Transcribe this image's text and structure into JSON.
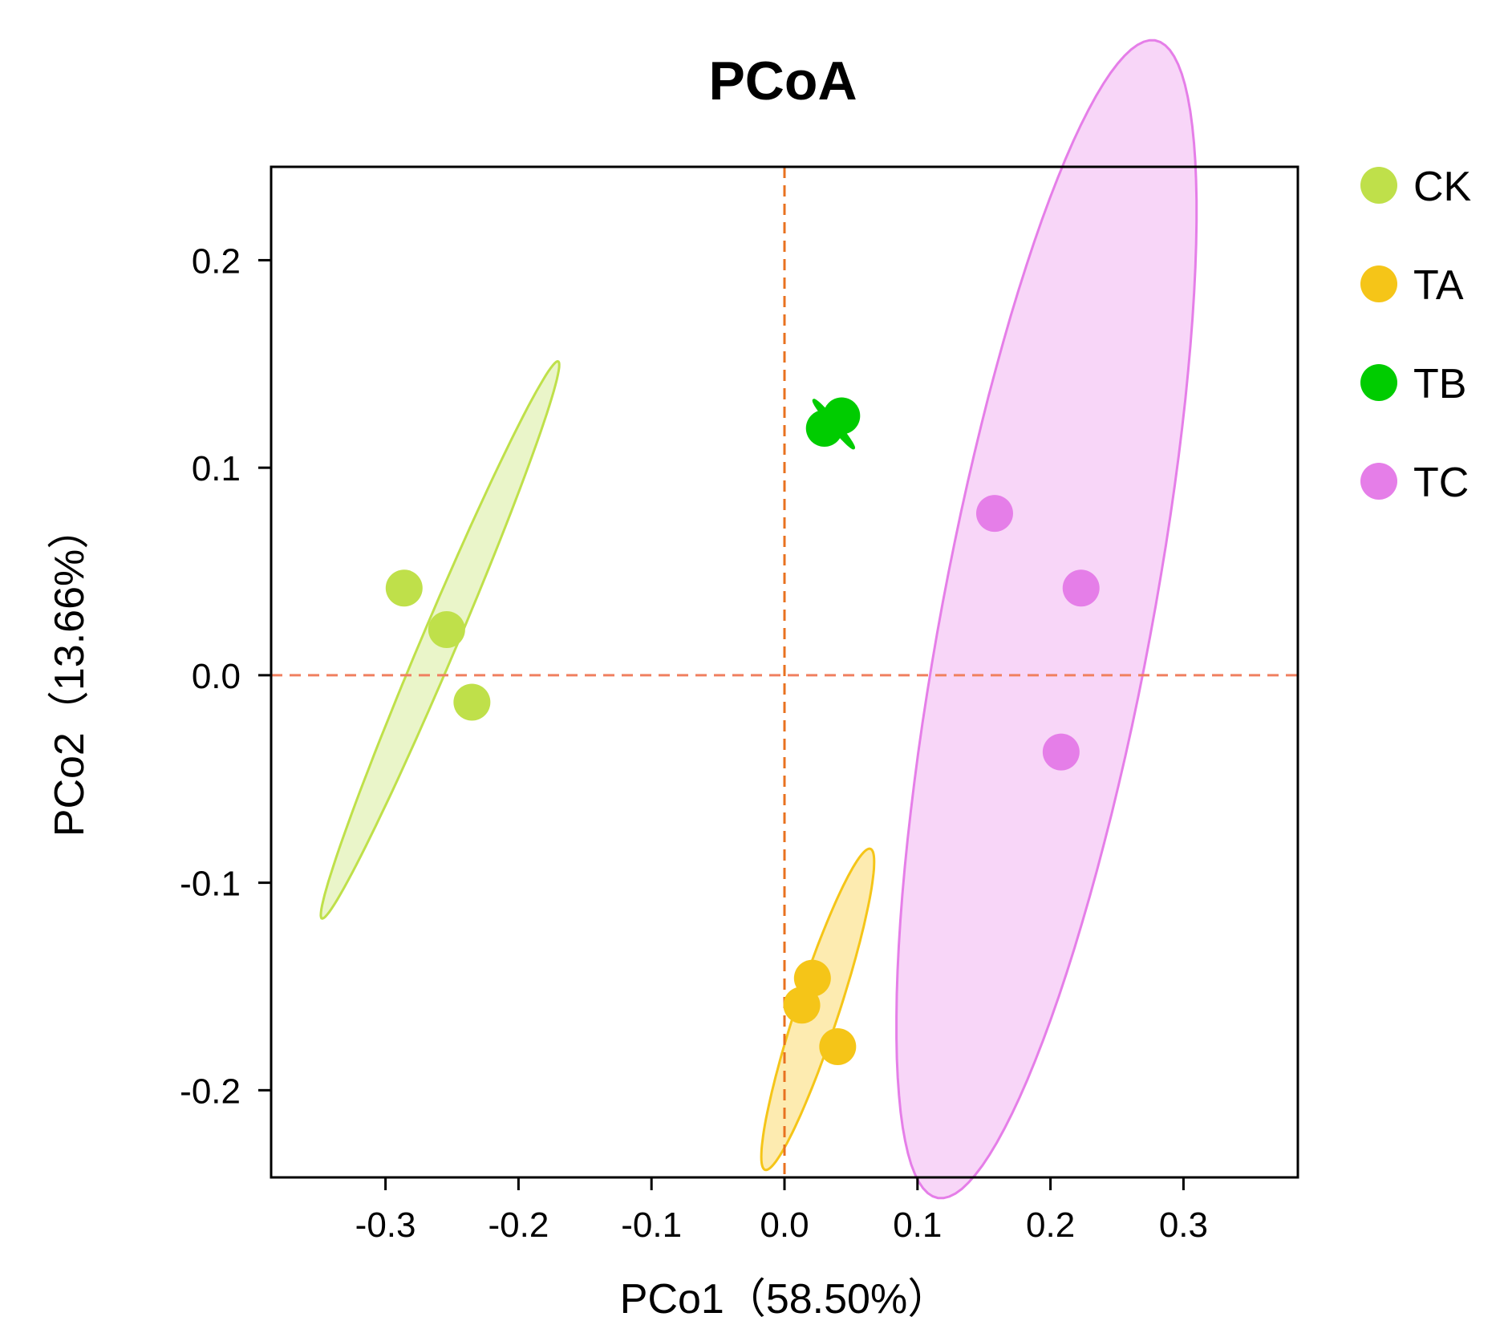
{
  "chart_data": {
    "type": "scatter",
    "title": "PCoA",
    "xlabel": "PCo1（58.50%）",
    "ylabel": "PCo2（13.66%）",
    "xlim": [
      -0.386,
      0.386
    ],
    "ylim": [
      -0.242,
      0.245
    ],
    "x_ticks": [
      {
        "value": -0.3,
        "label": "-0.3"
      },
      {
        "value": -0.2,
        "label": "-0.2"
      },
      {
        "value": -0.1,
        "label": "-0.1"
      },
      {
        "value": 0.0,
        "label": "0.0"
      },
      {
        "value": 0.1,
        "label": "0.1"
      },
      {
        "value": 0.2,
        "label": "0.2"
      },
      {
        "value": 0.3,
        "label": "0.3"
      }
    ],
    "y_ticks": [
      {
        "value": -0.2,
        "label": "-0.2"
      },
      {
        "value": -0.1,
        "label": "-0.1"
      },
      {
        "value": 0.0,
        "label": "0.0"
      },
      {
        "value": 0.1,
        "label": "0.1"
      },
      {
        "value": 0.2,
        "label": "0.2"
      }
    ],
    "reference_lines": {
      "x": 0.0,
      "y": 0.0
    },
    "grid": false,
    "legend_position": "right",
    "series": [
      {
        "name": "CK",
        "color": "#bfe04a",
        "fill": "#eaf5c9",
        "points": [
          [
            -0.286,
            0.042
          ],
          [
            -0.254,
            0.022
          ],
          [
            -0.235,
            -0.013
          ]
        ],
        "ellipse": {
          "cx": -0.259,
          "cy": 0.017,
          "rx": 0.161,
          "ry": 0.012,
          "angle_deg": 56.4
        }
      },
      {
        "name": "TA",
        "color": "#f5c518",
        "fill": "#fdebb0",
        "points": [
          [
            0.021,
            -0.146
          ],
          [
            0.013,
            -0.159
          ],
          [
            0.04,
            -0.179
          ]
        ],
        "ellipse": {
          "cx": 0.025,
          "cy": -0.161,
          "rx": 0.087,
          "ry": 0.015,
          "angle_deg": 62.4
        }
      },
      {
        "name": "TB",
        "color": "#00cc00",
        "fill": "#00cc00",
        "points": [
          [
            0.03,
            0.119
          ],
          [
            0.043,
            0.125
          ]
        ],
        "ellipse": {
          "cx": 0.037,
          "cy": 0.121,
          "rx": 0.019,
          "ry": 0.002,
          "angle_deg": -37.3
        }
      },
      {
        "name": "TC",
        "color": "#e57ee8",
        "fill": "#f8d6f8",
        "points": [
          [
            0.158,
            0.078
          ],
          [
            0.223,
            0.042
          ],
          [
            0.208,
            -0.037
          ]
        ],
        "ellipse": {
          "cx": 0.197,
          "cy": 0.027,
          "rx": 0.291,
          "ry": 0.077,
          "angle_deg": 72.9
        }
      }
    ]
  }
}
